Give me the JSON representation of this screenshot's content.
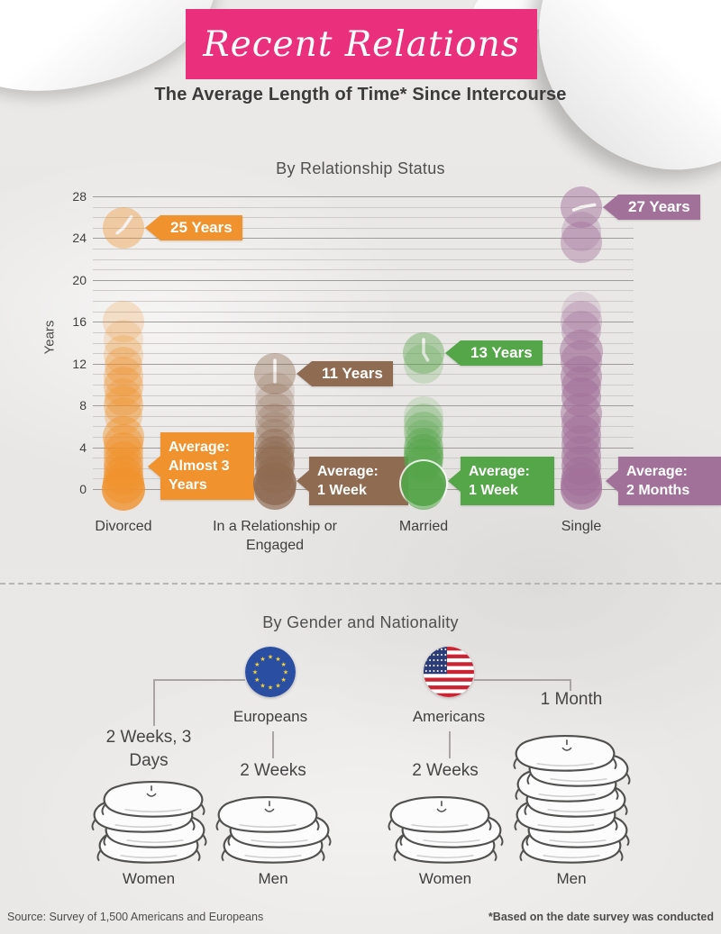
{
  "header": {
    "banner": "Recent Relations",
    "subtitle": "The Average Length of Time* Since Intercourse"
  },
  "colors": {
    "banner_pink": "#ea2f7d",
    "paper": "#e9e7e5",
    "orange": "#f0922d",
    "brown": "#8f6b52",
    "green": "#55a549",
    "purple": "#a2719a",
    "eu_blue": "#2a4fa2",
    "eu_star": "#f8d12e",
    "us_red": "#cc2333",
    "us_blue": "#2c3c77"
  },
  "chart_data": [
    {
      "type": "scatter",
      "title": "By Relationship Status",
      "ylabel": "Years",
      "ylim": [
        0,
        28
      ],
      "yticks": [
        0,
        4,
        8,
        12,
        16,
        20,
        24,
        28
      ],
      "grid": "minor lines every 1 year, major every 4 years",
      "categories": [
        "Divorced",
        "In a Relationship or Engaged",
        "Married",
        "Single"
      ],
      "series": [
        {
          "name": "Divorced",
          "color": "#f0922d",
          "highlight": {
            "value": 25,
            "label": "25 Years",
            "opacity": 0.28,
            "radius": 23,
            "hands": [
              35,
              230
            ]
          },
          "average": "Average: Almost 3 Years",
          "average_lines": [
            "Average:",
            "Almost 3",
            "Years"
          ],
          "bubbles": [
            [
              16,
              0.22,
              23
            ],
            [
              14.3,
              0.18,
              22
            ],
            [
              12.8,
              0.25,
              22
            ],
            [
              11.8,
              0.3,
              21
            ],
            [
              10.8,
              0.3,
              22
            ],
            [
              9.8,
              0.35,
              22
            ],
            [
              8.8,
              0.3,
              21
            ],
            [
              8,
              0.38,
              22
            ],
            [
              7,
              0.3,
              21
            ],
            [
              5,
              0.45,
              23
            ],
            [
              4.3,
              0.4,
              22
            ],
            [
              3.5,
              0.45,
              22
            ],
            [
              2.7,
              0.45,
              22
            ],
            [
              2,
              0.5,
              22
            ],
            [
              1.3,
              0.55,
              22
            ],
            [
              0.6,
              0.6,
              23
            ],
            [
              0,
              0.8,
              24
            ]
          ]
        },
        {
          "name": "In a Relationship or Engaged",
          "color": "#8f6b52",
          "highlight": {
            "value": 11,
            "label": "11 Years",
            "opacity": 0.3,
            "radius": 23,
            "hands": [
              0,
              180
            ]
          },
          "average": "Average: 1 Week",
          "average_lines": [
            "Average:",
            "1 Week"
          ],
          "bubbles": [
            [
              9.3,
              0.18,
              22
            ],
            [
              8.3,
              0.22,
              22
            ],
            [
              7.3,
              0.25,
              22
            ],
            [
              6.3,
              0.28,
              22
            ],
            [
              5.6,
              0.22,
              21
            ],
            [
              4.8,
              0.28,
              22
            ],
            [
              3.9,
              0.45,
              22
            ],
            [
              3.3,
              0.45,
              21
            ],
            [
              2.7,
              0.5,
              22
            ],
            [
              2.2,
              0.55,
              22
            ],
            [
              1.4,
              0.5,
              21
            ],
            [
              0.5,
              0.85,
              24
            ],
            [
              0,
              0.7,
              23
            ]
          ]
        },
        {
          "name": "Married",
          "color": "#55a549",
          "highlight": {
            "value": 13,
            "label": "13 Years",
            "opacity": 0.3,
            "radius": 23,
            "hands": [
              0,
              150
            ]
          },
          "average": "Average: 1 Week",
          "average_lines": [
            "Average:",
            "1 Week"
          ],
          "bubbles": [
            [
              12,
              0.22,
              22
            ],
            [
              7,
              0.18,
              22
            ],
            [
              6.3,
              0.25,
              22
            ],
            [
              5.5,
              0.3,
              22
            ],
            [
              4.8,
              0.25,
              21
            ],
            [
              4,
              0.4,
              22
            ],
            [
              3.4,
              0.45,
              22
            ],
            [
              2.9,
              0.45,
              22
            ],
            [
              2.4,
              0.5,
              21
            ],
            [
              0.5,
              0.9,
              25,
              1
            ],
            [
              0,
              0.6,
              23
            ]
          ]
        },
        {
          "name": "Single",
          "color": "#a2719a",
          "highlight": {
            "value": 27,
            "label": "27 Years",
            "opacity": 0.38,
            "radius": 23,
            "hands": [
              80,
              250
            ]
          },
          "average": "Average: 2 Months",
          "average_lines": [
            "Average:",
            "2 Months"
          ],
          "bubbles": [
            [
              24.6,
              0.3,
              22
            ],
            [
              23.6,
              0.42,
              23
            ],
            [
              17,
              0.2,
              22
            ],
            [
              16,
              0.3,
              23
            ],
            [
              15.2,
              0.35,
              22
            ],
            [
              13.2,
              0.5,
              24
            ],
            [
              12.2,
              0.45,
              23
            ],
            [
              10.8,
              0.5,
              23
            ],
            [
              9.8,
              0.5,
              22
            ],
            [
              8.8,
              0.55,
              22
            ],
            [
              7.2,
              0.5,
              23
            ],
            [
              6.2,
              0.5,
              22
            ],
            [
              5.2,
              0.55,
              22
            ],
            [
              4.2,
              0.5,
              22
            ],
            [
              3.2,
              0.55,
              22
            ],
            [
              2.2,
              0.6,
              22
            ],
            [
              1.2,
              0.62,
              22
            ],
            [
              0.5,
              0.65,
              23
            ],
            [
              0,
              0.7,
              23
            ]
          ]
        }
      ]
    },
    {
      "type": "pictogram",
      "title": "By Gender and Nationality",
      "unit": "pillow stacks",
      "groups": [
        {
          "nationality": "Europeans",
          "flag": "eu-flag",
          "items": [
            {
              "gender": "Women",
              "value": "2 Weeks, 3 Days",
              "pillows": 4
            },
            {
              "gender": "Men",
              "value": "2 Weeks",
              "pillows": 3
            }
          ]
        },
        {
          "nationality": "Americans",
          "flag": "us-flag",
          "items": [
            {
              "gender": "Women",
              "value": "2 Weeks",
              "pillows": 3
            },
            {
              "gender": "Men",
              "value": "1 Month",
              "pillows": 7
            }
          ]
        }
      ]
    }
  ],
  "footer": {
    "source": "Source: Survey of 1,500 Americans and Europeans",
    "note": "*Based on the date survey was conducted"
  }
}
